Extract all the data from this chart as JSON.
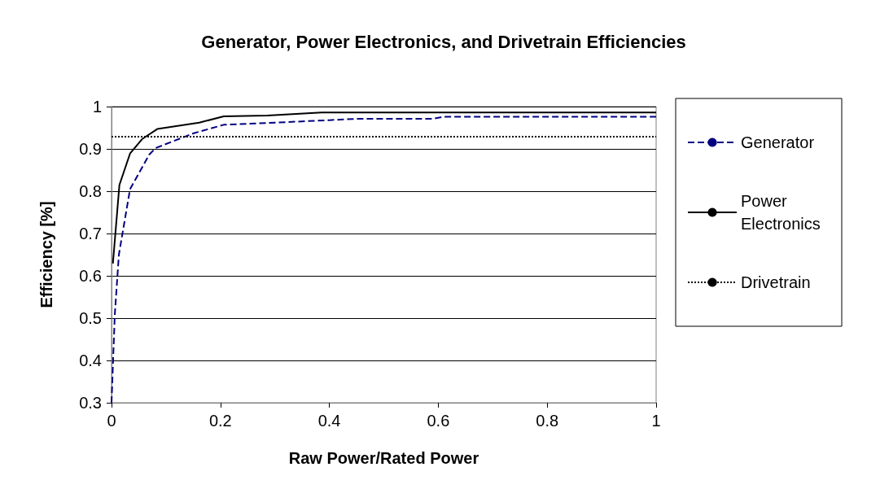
{
  "chart_data": {
    "type": "line",
    "title": "Generator, Power Electronics, and Drivetrain Efficiencies",
    "xlabel": "Raw Power/Rated Power",
    "ylabel": "Efficiency [%]",
    "xlim": [
      0,
      1
    ],
    "xticks": [
      0,
      0.2,
      0.4,
      0.6,
      0.8,
      1
    ],
    "ylim": [
      0.3,
      1
    ],
    "yticks": [
      0.3,
      0.4,
      0.5,
      0.6,
      0.7,
      0.8,
      0.9,
      1
    ],
    "grid": "y",
    "legend": "right",
    "marker": "none",
    "series": [
      {
        "name": "Generator",
        "color": "#000080",
        "line_style": "dashed",
        "x": [
          0,
          0.006,
          0.0135,
          0.034,
          0.069,
          0.081,
          0.151,
          0.206,
          0.3,
          0.4,
          0.45,
          0.59,
          0.61,
          1
        ],
        "values": [
          0.3,
          0.508,
          0.65,
          0.805,
          0.886,
          0.902,
          0.937,
          0.957,
          0.962,
          0.968,
          0.971,
          0.971,
          0.976,
          0.976
        ]
      },
      {
        "name": "Power Electronics",
        "color": "#000000",
        "line_style": "solid",
        "x": [
          0.0025,
          0.0145,
          0.034,
          0.056,
          0.084,
          0.161,
          0.206,
          0.286,
          0.386,
          1
        ],
        "values": [
          0.629,
          0.815,
          0.889,
          0.923,
          0.947,
          0.962,
          0.977,
          0.979,
          0.986,
          0.986
        ]
      },
      {
        "name": "Drivetrain",
        "color": "#000000",
        "line_style": "dotted",
        "x": [
          0,
          1
        ],
        "values": [
          0.929,
          0.929
        ]
      }
    ]
  }
}
